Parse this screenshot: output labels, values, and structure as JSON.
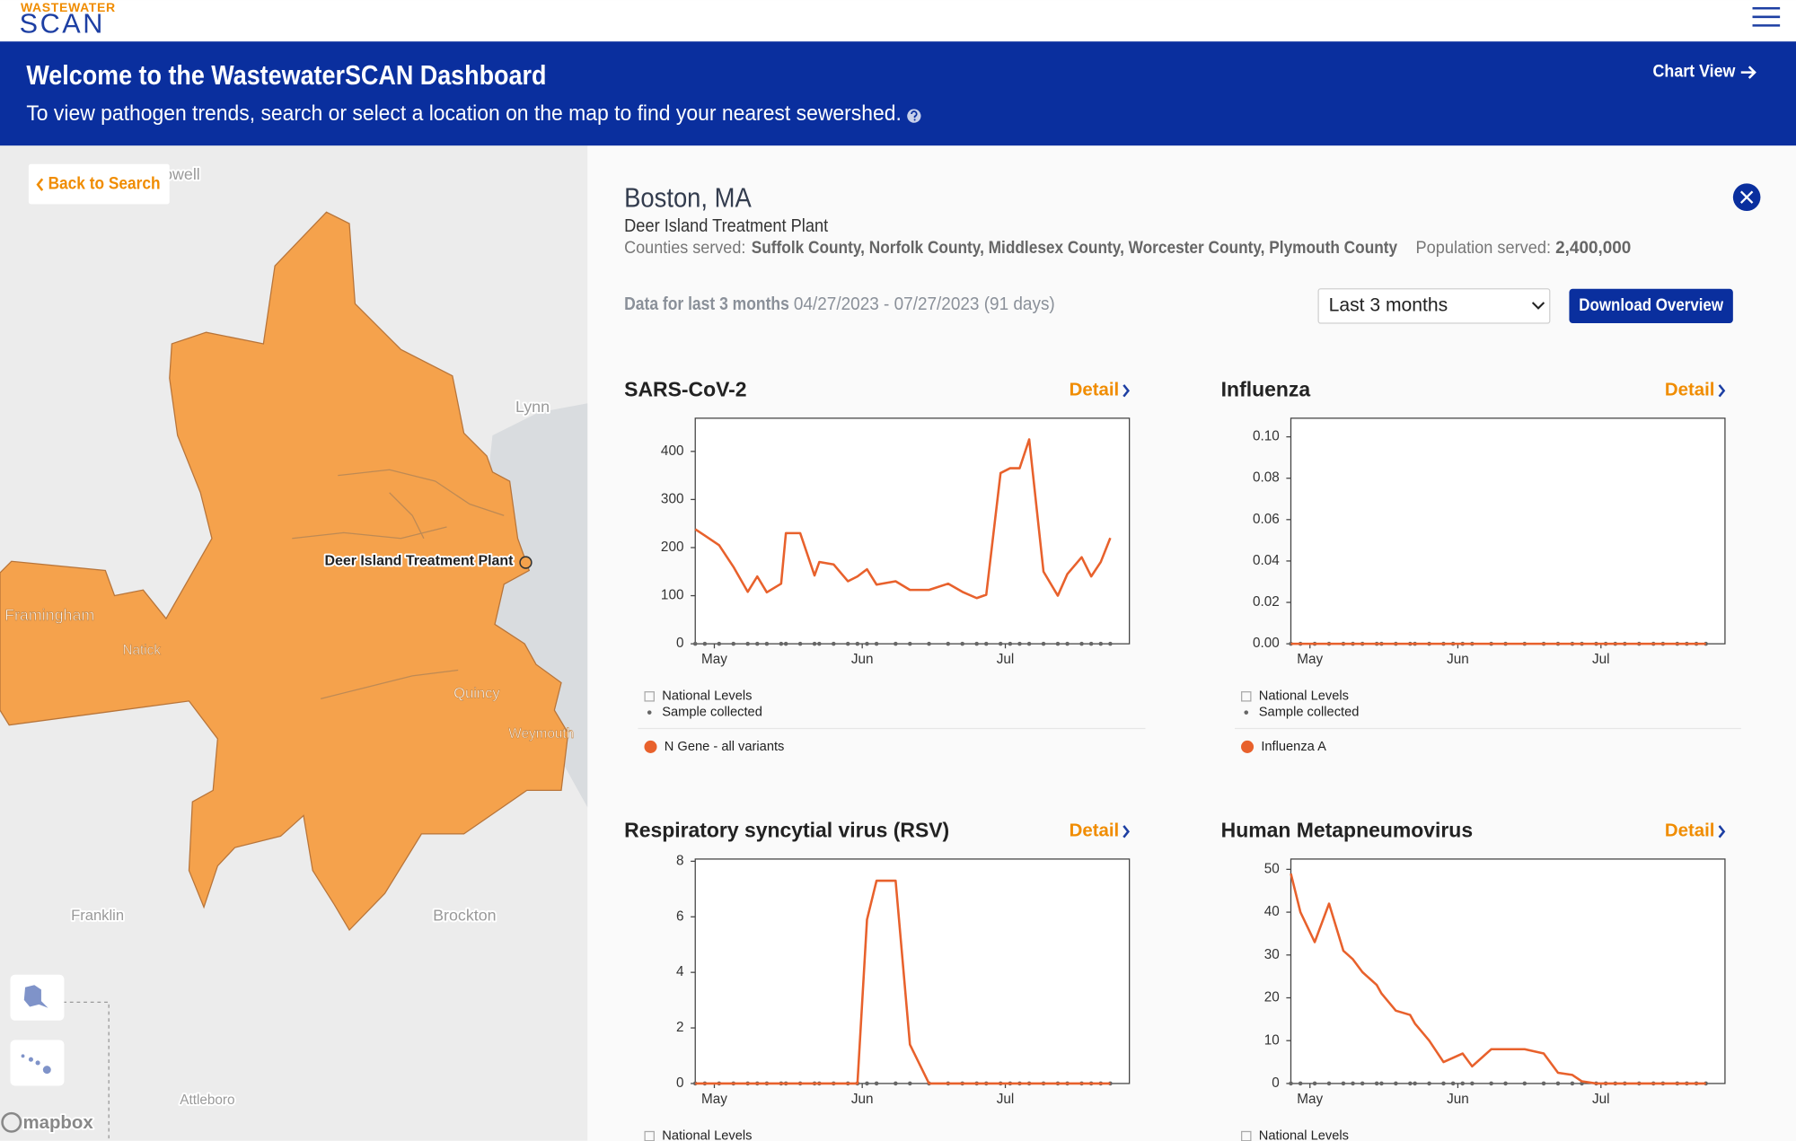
{
  "header": {
    "logo_top": "WASTEWATER",
    "logo_bottom": "SCAN"
  },
  "banner": {
    "title": "Welcome to the WastewaterSCAN Dashboard",
    "subtitle": "To view pathogen trends, search or select a location on the map to find your nearest sewershed.",
    "chart_view": "Chart View"
  },
  "map": {
    "back": "Back to Search",
    "plant_label": "Deer Island Treatment Plant",
    "labels": [
      "Lowell",
      "Lynn",
      "Framingham",
      "Natick",
      "Quincy",
      "Weymouth",
      "Franklin",
      "Brockton",
      "Attleboro"
    ],
    "attribution": "mapbox"
  },
  "site": {
    "city": "Boston, MA",
    "plant": "Deer Island Treatment Plant",
    "counties_label": "Counties served:",
    "counties": "Suffolk County, Norfolk County, Middlesex County, Worcester County, Plymouth County",
    "population_label": "Population served:",
    "population": "2,400,000"
  },
  "range": {
    "label": "Data for last 3 months",
    "dates": "04/27/2023 - 07/27/2023 (91 days)",
    "select": "Last 3 months",
    "download": "Download Overview"
  },
  "detail": "Detail",
  "legend": {
    "national": "National Levels",
    "sample": "Sample collected"
  },
  "charts": [
    {
      "type": "line",
      "title": "SARS-CoV-2",
      "x": [
        0,
        2,
        5,
        8,
        11,
        13,
        15,
        18,
        19,
        22,
        25,
        26,
        29,
        32,
        34,
        36,
        38,
        42,
        45,
        49,
        53,
        56,
        59,
        61,
        64,
        66,
        68,
        70,
        73,
        76,
        78,
        81,
        83,
        85,
        87
      ],
      "xlim": [
        0,
        91
      ],
      "xticks": [
        {
          "value": 4,
          "label": "May"
        },
        {
          "value": 35,
          "label": "Jun"
        },
        {
          "value": 65,
          "label": "Jul"
        }
      ],
      "ylim": [
        0,
        469
      ],
      "yticks": [
        0,
        100,
        200,
        300,
        400
      ],
      "series": [
        {
          "name": "N Gene - all variants",
          "color": "#e8612c",
          "values": [
            238,
            225,
            205,
            160,
            108,
            140,
            107,
            125,
            230,
            230,
            142,
            170,
            165,
            130,
            140,
            155,
            123,
            130,
            112,
            112,
            125,
            108,
            95,
            102,
            355,
            365,
            365,
            425,
            150,
            100,
            145,
            180,
            140,
            170,
            220
          ]
        }
      ]
    },
    {
      "type": "line",
      "title": "Influenza",
      "x": [
        0,
        2,
        5,
        8,
        11,
        13,
        15,
        18,
        19,
        22,
        25,
        26,
        29,
        32,
        34,
        36,
        38,
        42,
        45,
        49,
        53,
        56,
        59,
        61,
        64,
        66,
        68,
        70,
        73,
        76,
        78,
        81,
        83,
        85,
        87
      ],
      "xlim": [
        0,
        91
      ],
      "xticks": [
        {
          "value": 4,
          "label": "May"
        },
        {
          "value": 35,
          "label": "Jun"
        },
        {
          "value": 65,
          "label": "Jul"
        }
      ],
      "ylim": [
        0,
        0.109
      ],
      "yticks": [
        {
          "value": 0,
          "label": "0.00"
        },
        {
          "value": 0.02,
          "label": "0.02"
        },
        {
          "value": 0.04,
          "label": "0.04"
        },
        {
          "value": 0.06,
          "label": "0.06"
        },
        {
          "value": 0.08,
          "label": "0.08"
        },
        {
          "value": 0.1,
          "label": "0.10"
        }
      ],
      "series": [
        {
          "name": "Influenza A",
          "color": "#e8612c",
          "values": [
            0,
            0,
            0,
            0,
            0,
            0,
            0,
            0,
            0,
            0,
            0,
            0,
            0,
            0,
            0,
            0,
            0,
            0,
            0,
            0,
            0,
            0,
            0,
            0,
            0,
            0,
            0,
            0,
            0,
            0,
            0,
            0,
            0,
            0,
            0
          ]
        }
      ]
    },
    {
      "type": "line",
      "title": "Respiratory syncytial virus (RSV)",
      "x": [
        0,
        2,
        5,
        8,
        11,
        13,
        15,
        18,
        19,
        22,
        25,
        26,
        29,
        32,
        34,
        36,
        38,
        42,
        45,
        49,
        53,
        56,
        59,
        61,
        64,
        66,
        68,
        70,
        73,
        76,
        78,
        81,
        83,
        85,
        87
      ],
      "xlim": [
        0,
        91
      ],
      "xticks": [
        {
          "value": 4,
          "label": "May"
        },
        {
          "value": 35,
          "label": "Jun"
        },
        {
          "value": 65,
          "label": "Jul"
        }
      ],
      "ylim": [
        0,
        8.08
      ],
      "yticks": [
        0,
        2,
        4,
        6,
        8
      ],
      "series": [
        {
          "color": "#e8612c",
          "values": [
            0,
            0,
            0,
            0,
            0,
            0,
            0,
            0,
            0,
            0,
            0,
            0,
            0,
            0,
            0,
            5.9,
            7.3,
            7.3,
            1.4,
            0,
            0,
            0,
            0,
            0,
            0,
            0,
            0,
            0,
            0,
            0,
            0,
            0,
            0,
            0,
            0
          ]
        }
      ]
    },
    {
      "type": "line",
      "title": "Human Metapneumovirus",
      "x": [
        0,
        2,
        5,
        8,
        11,
        13,
        15,
        18,
        19,
        22,
        25,
        26,
        29,
        32,
        34,
        36,
        38,
        42,
        45,
        49,
        53,
        56,
        59,
        61,
        64,
        66,
        68,
        70,
        73,
        76,
        78,
        81,
        83,
        85,
        87
      ],
      "xlim": [
        0,
        91
      ],
      "xticks": [
        {
          "value": 4,
          "label": "May"
        },
        {
          "value": 35,
          "label": "Jun"
        },
        {
          "value": 65,
          "label": "Jul"
        }
      ],
      "ylim": [
        0,
        52.4
      ],
      "yticks": [
        0,
        10,
        20,
        30,
        40,
        50
      ],
      "series": [
        {
          "color": "#e8612c",
          "values": [
            49,
            40,
            33,
            42,
            31,
            29,
            26,
            23,
            21,
            17,
            16,
            14,
            10,
            5,
            6,
            7,
            4,
            8,
            8,
            8,
            7,
            2.5,
            2,
            0.5,
            0,
            0,
            0,
            0,
            0,
            0,
            0,
            0,
            0,
            0,
            0
          ]
        }
      ]
    }
  ]
}
